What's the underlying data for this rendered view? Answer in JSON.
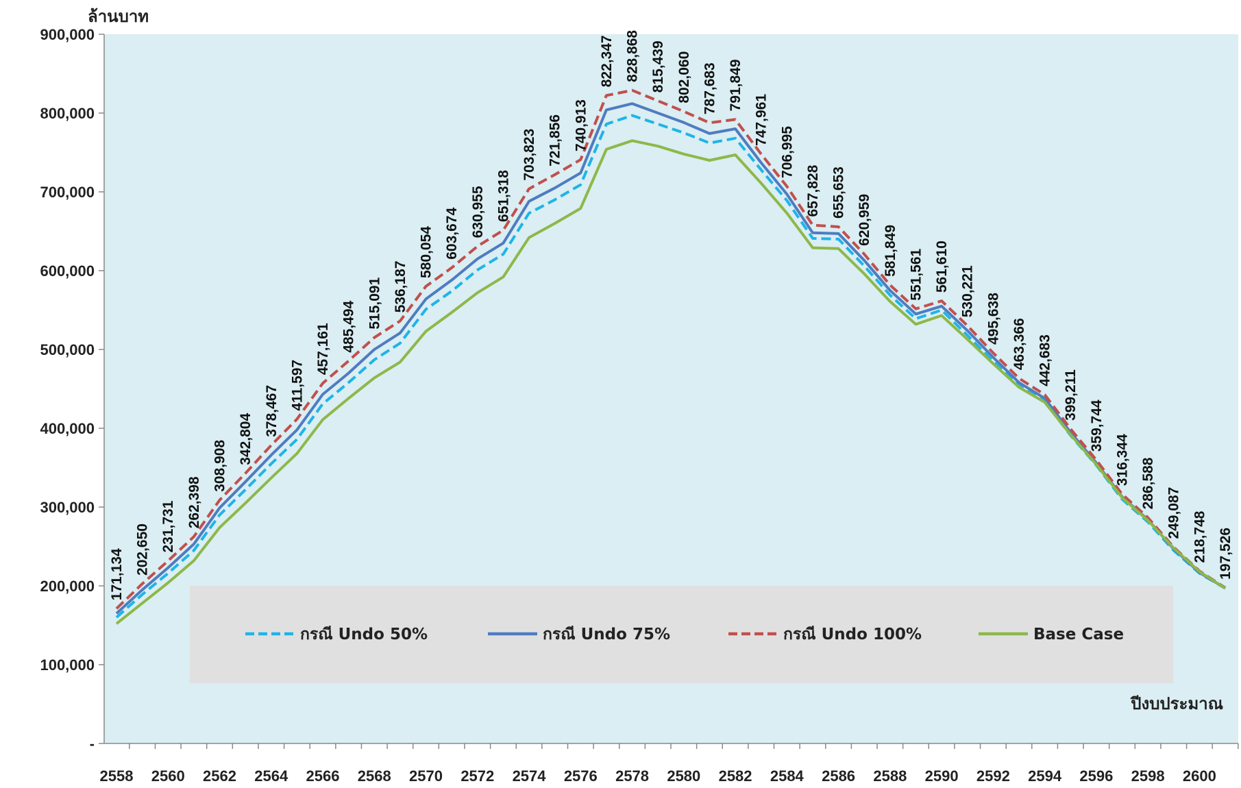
{
  "chart_data": {
    "type": "line",
    "title": "",
    "ylabel": "ล้านบาท",
    "xlabel": "ปีงบประมาณ",
    "ylim": [
      0,
      900000
    ],
    "yticks": [
      "-",
      "100,000",
      "200,000",
      "300,000",
      "400,000",
      "500,000",
      "600,000",
      "700,000",
      "800,000",
      "900,000"
    ],
    "x": [
      2558,
      2559,
      2560,
      2561,
      2562,
      2563,
      2564,
      2565,
      2566,
      2567,
      2568,
      2569,
      2570,
      2571,
      2572,
      2573,
      2574,
      2575,
      2576,
      2577,
      2578,
      2579,
      2580,
      2581,
      2582,
      2583,
      2584,
      2585,
      2586,
      2587,
      2588,
      2589,
      2590,
      2591,
      2592,
      2593,
      2594,
      2595,
      2596,
      2597,
      2598,
      2599,
      2600,
      2601
    ],
    "xtick_labels": [
      "2558",
      "2560",
      "2562",
      "2564",
      "2566",
      "2568",
      "2570",
      "2572",
      "2574",
      "2576",
      "2578",
      "2580",
      "2582",
      "2584",
      "2586",
      "2588",
      "2590",
      "2592",
      "2594",
      "2596",
      "2598",
      "2600"
    ],
    "grid": false,
    "legend": "inside-bottom",
    "background": "#daeef3",
    "data_labels_series": "กรณี Undo 100%",
    "data_labels": [
      "171,134",
      "202,650",
      "231,731",
      "262,398",
      "308,908",
      "342,804",
      "378,467",
      "411,597",
      "457,161",
      "485,494",
      "515,091",
      "536,187",
      "580,054",
      "603,674",
      "630,955",
      "651,318",
      "703,823",
      "721,856",
      "740,913",
      "822,347",
      "828,868",
      "815,439",
      "802,060",
      "787,683",
      "791,849",
      "747,961",
      "706,995",
      "657,828",
      "655,653",
      "620,959",
      "581,849",
      "551,561",
      "561,610",
      "530,221",
      "495,638",
      "463,366",
      "442,683",
      "399,211",
      "359,744",
      "316,344",
      "286,588",
      "249,087",
      "218,748",
      "197,526"
    ],
    "series": [
      {
        "name": "กรณี Undo 50%",
        "color": "#1fb4e8",
        "dash": "dashed",
        "values": [
          160000,
          189000,
          216000,
          245000,
          290000,
          322000,
          355000,
          386000,
          431000,
          458000,
          487000,
          508000,
          551000,
          574000,
          601000,
          621000,
          673000,
          690000,
          709000,
          786000,
          797000,
          786000,
          775000,
          762000,
          768000,
          728000,
          689000,
          641000,
          640000,
          606000,
          569000,
          539000,
          550000,
          518000,
          485000,
          454000,
          434000,
          391000,
          353000,
          310000,
          281000,
          245000,
          216000,
          197000
        ]
      },
      {
        "name": "กรณี Undo 75%",
        "color": "#4f7cc0",
        "dash": "solid",
        "values": [
          165000,
          195000,
          223000,
          253000,
          299000,
          332000,
          366000,
          398000,
          443000,
          470000,
          500000,
          521000,
          564000,
          588000,
          615000,
          635000,
          688000,
          705000,
          724000,
          804000,
          812000,
          800000,
          788000,
          774000,
          780000,
          737000,
          697000,
          648000,
          647000,
          613000,
          575000,
          545000,
          555000,
          524000,
          490000,
          458000,
          438000,
          395000,
          356000,
          313000,
          284000,
          247000,
          217000,
          197000
        ]
      },
      {
        "name": "กรณี Undo 100%",
        "color": "#c0504d",
        "dash": "dashed",
        "values": [
          171134,
          202650,
          231731,
          262398,
          308908,
          342804,
          378467,
          411597,
          457161,
          485494,
          515091,
          536187,
          580054,
          603674,
          630955,
          651318,
          703823,
          721856,
          740913,
          822347,
          828868,
          815439,
          802060,
          787683,
          791849,
          747961,
          706995,
          657828,
          655653,
          620959,
          581849,
          551561,
          561610,
          530221,
          495638,
          463366,
          442683,
          399211,
          359744,
          316344,
          286588,
          249087,
          218748,
          197526
        ]
      },
      {
        "name": "Base Case",
        "color": "#8db84a",
        "dash": "solid",
        "values": [
          152000,
          178000,
          204000,
          232000,
          274000,
          305000,
          337000,
          368000,
          411000,
          438000,
          464000,
          484000,
          523000,
          547000,
          572000,
          592000,
          642000,
          660000,
          679000,
          754000,
          765000,
          758000,
          748000,
          740000,
          747000,
          711000,
          673000,
          629000,
          628000,
          596000,
          561000,
          532000,
          543000,
          513000,
          482000,
          452000,
          433000,
          392000,
          354000,
          312000,
          283000,
          248000,
          218000,
          197000
        ]
      }
    ]
  }
}
